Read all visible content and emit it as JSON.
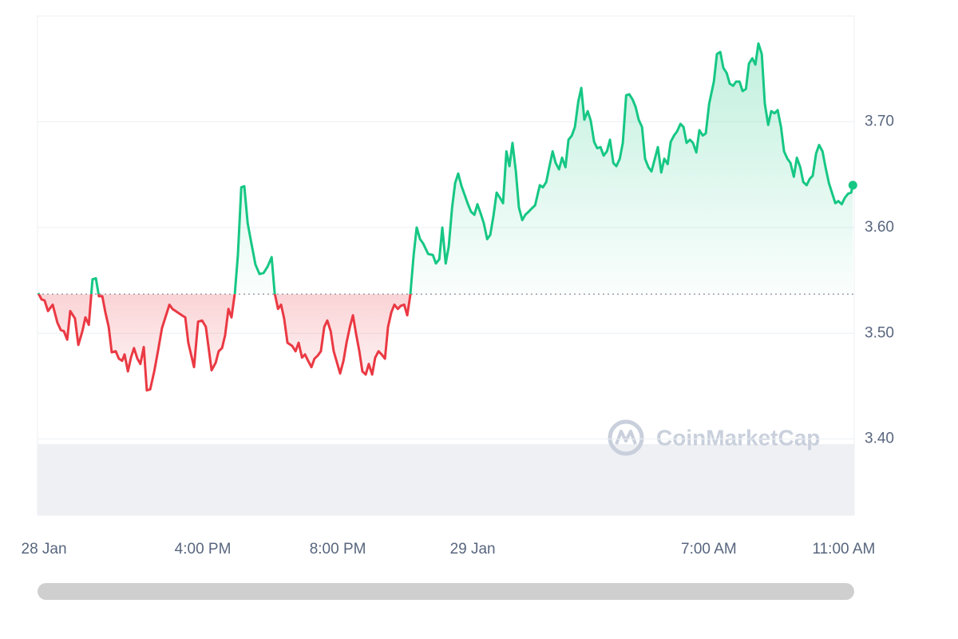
{
  "chart_data": {
    "type": "line",
    "watermark": "CoinMarketCap",
    "up_color": "#16c784",
    "down_color": "#ea3943",
    "baseline": 3.537,
    "grid": true,
    "xlim": [
      11.1,
      35.31
    ],
    "xticks": [
      {
        "value": 11.29,
        "label": "28 Jan"
      },
      {
        "value": 16,
        "label": "4:00 PM"
      },
      {
        "value": 20,
        "label": "8:00 PM"
      },
      {
        "value": 24,
        "label": "29 Jan"
      },
      {
        "value": 31,
        "label": "7:00 AM"
      },
      {
        "value": 35,
        "label": "11:00 AM"
      }
    ],
    "ylim": [
      3.328,
      3.8
    ],
    "yticks": [
      {
        "value": 3.4,
        "label": "3.40"
      },
      {
        "value": 3.5,
        "label": "3.50"
      },
      {
        "value": 3.6,
        "label": "3.60"
      },
      {
        "value": 3.7,
        "label": "3.70"
      }
    ],
    "x": [
      11.12,
      11.22,
      11.31,
      11.41,
      11.55,
      11.69,
      11.79,
      11.88,
      11.98,
      12.07,
      12.21,
      12.31,
      12.43,
      12.52,
      12.62,
      12.73,
      12.83,
      12.92,
      13.02,
      13.11,
      13.21,
      13.3,
      13.42,
      13.51,
      13.61,
      13.68,
      13.78,
      13.87,
      13.96,
      14.06,
      14.15,
      14.25,
      14.34,
      14.44,
      14.56,
      14.67,
      14.79,
      14.91,
      15.01,
      15.1,
      15.24,
      15.38,
      15.48,
      15.57,
      15.74,
      15.86,
      15.98,
      16.09,
      16.26,
      16.38,
      16.47,
      16.57,
      16.66,
      16.76,
      16.85,
      16.95,
      17.04,
      17.14,
      17.23,
      17.33,
      17.44,
      17.56,
      17.68,
      17.8,
      17.92,
      18.04,
      18.13,
      18.23,
      18.32,
      18.41,
      18.51,
      18.65,
      18.75,
      18.84,
      18.94,
      19.03,
      19.12,
      19.22,
      19.31,
      19.41,
      19.5,
      19.6,
      19.69,
      19.79,
      19.88,
      19.98,
      20.07,
      20.17,
      20.26,
      20.36,
      20.45,
      20.54,
      20.64,
      20.73,
      20.83,
      20.92,
      21.02,
      21.11,
      21.21,
      21.3,
      21.4,
      21.49,
      21.59,
      21.68,
      21.78,
      21.87,
      21.97,
      22.06,
      22.15,
      22.25,
      22.34,
      22.44,
      22.53,
      22.68,
      22.82,
      22.91,
      23.01,
      23.1,
      23.2,
      23.29,
      23.39,
      23.48,
      23.57,
      23.67,
      23.76,
      23.86,
      23.95,
      24.05,
      24.14,
      24.24,
      24.33,
      24.43,
      24.52,
      24.62,
      24.71,
      24.81,
      24.9,
      25.0,
      25.09,
      25.18,
      25.28,
      25.37,
      25.47,
      25.56,
      25.66,
      25.75,
      25.85,
      25.99,
      26.08,
      26.18,
      26.27,
      26.37,
      26.46,
      26.56,
      26.65,
      26.75,
      26.84,
      26.94,
      27.03,
      27.13,
      27.22,
      27.31,
      27.41,
      27.5,
      27.6,
      27.69,
      27.79,
      27.88,
      27.98,
      28.07,
      28.17,
      28.26,
      28.36,
      28.45,
      28.55,
      28.64,
      28.74,
      28.83,
      28.92,
      29.02,
      29.11,
      29.21,
      29.3,
      29.4,
      29.49,
      29.59,
      29.68,
      29.78,
      29.87,
      29.97,
      30.06,
      30.16,
      30.25,
      30.34,
      30.44,
      30.53,
      30.63,
      30.72,
      30.82,
      30.91,
      31.01,
      31.15,
      31.24,
      31.34,
      31.43,
      31.53,
      31.62,
      31.72,
      31.81,
      31.91,
      32.0,
      32.1,
      32.19,
      32.29,
      32.38,
      32.47,
      32.57,
      32.66,
      32.76,
      32.85,
      32.95,
      33.04,
      33.14,
      33.23,
      33.33,
      33.42,
      33.52,
      33.61,
      33.71,
      33.8,
      33.9,
      33.99,
      34.08,
      34.18,
      34.27,
      34.37,
      34.46,
      34.56,
      34.65,
      34.75,
      34.84,
      34.94,
      35.03,
      35.13,
      35.22,
      35.27
    ],
    "values": [
      3.538,
      3.532,
      3.531,
      3.521,
      3.527,
      3.51,
      3.503,
      3.502,
      3.494,
      3.521,
      3.514,
      3.489,
      3.502,
      3.515,
      3.508,
      3.551,
      3.552,
      3.535,
      3.535,
      3.52,
      3.506,
      3.482,
      3.483,
      3.476,
      3.474,
      3.48,
      3.464,
      3.477,
      3.486,
      3.476,
      3.471,
      3.487,
      3.446,
      3.447,
      3.464,
      3.483,
      3.505,
      3.517,
      3.527,
      3.523,
      3.52,
      3.517,
      3.515,
      3.491,
      3.468,
      3.511,
      3.512,
      3.506,
      3.465,
      3.472,
      3.483,
      3.486,
      3.498,
      3.523,
      3.515,
      3.538,
      3.574,
      3.638,
      3.639,
      3.604,
      3.585,
      3.565,
      3.556,
      3.557,
      3.563,
      3.572,
      3.538,
      3.523,
      3.527,
      3.514,
      3.491,
      3.488,
      3.483,
      3.491,
      3.477,
      3.48,
      3.474,
      3.468,
      3.476,
      3.479,
      3.483,
      3.506,
      3.512,
      3.502,
      3.483,
      3.472,
      3.462,
      3.474,
      3.491,
      3.506,
      3.517,
      3.5,
      3.483,
      3.464,
      3.461,
      3.471,
      3.461,
      3.477,
      3.483,
      3.48,
      3.476,
      3.506,
      3.52,
      3.527,
      3.523,
      3.526,
      3.527,
      3.517,
      3.536,
      3.574,
      3.6,
      3.589,
      3.585,
      3.575,
      3.574,
      3.566,
      3.57,
      3.6,
      3.566,
      3.582,
      3.619,
      3.642,
      3.651,
      3.639,
      3.631,
      3.622,
      3.615,
      3.612,
      3.622,
      3.613,
      3.604,
      3.589,
      3.593,
      3.612,
      3.633,
      3.628,
      3.623,
      3.672,
      3.658,
      3.68,
      3.653,
      3.619,
      3.607,
      3.612,
      3.615,
      3.618,
      3.621,
      3.64,
      3.638,
      3.643,
      3.657,
      3.672,
      3.661,
      3.655,
      3.666,
      3.657,
      3.683,
      3.687,
      3.695,
      3.719,
      3.732,
      3.702,
      3.71,
      3.701,
      3.681,
      3.675,
      3.676,
      3.668,
      3.672,
      3.683,
      3.661,
      3.658,
      3.665,
      3.68,
      3.725,
      3.726,
      3.721,
      3.714,
      3.702,
      3.695,
      3.665,
      3.657,
      3.653,
      3.665,
      3.676,
      3.652,
      3.665,
      3.66,
      3.681,
      3.687,
      3.691,
      3.698,
      3.695,
      3.68,
      3.683,
      3.68,
      3.671,
      3.692,
      3.687,
      3.689,
      3.717,
      3.738,
      3.764,
      3.766,
      3.751,
      3.746,
      3.736,
      3.734,
      3.738,
      3.738,
      3.729,
      3.731,
      3.755,
      3.76,
      3.754,
      3.774,
      3.764,
      3.717,
      3.697,
      3.71,
      3.708,
      3.711,
      3.695,
      3.672,
      3.665,
      3.661,
      3.648,
      3.666,
      3.657,
      3.643,
      3.64,
      3.646,
      3.649,
      3.67,
      3.678,
      3.672,
      3.657,
      3.642,
      3.633,
      3.623,
      3.625,
      3.622,
      3.628,
      3.632,
      3.633,
      3.64
    ]
  }
}
